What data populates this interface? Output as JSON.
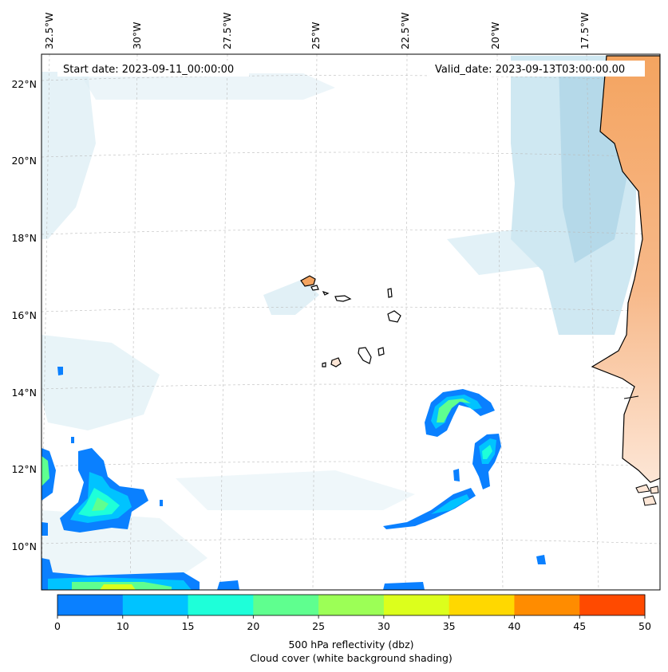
{
  "header": {
    "start_date": "Start date: 2023-09-11_00:00:00",
    "valid_date": "Valid_date: 2023-09-13T03:00:00.00"
  },
  "map": {
    "lon_labels": [
      "32.5°W",
      "30°W",
      "27.5°W",
      "25°W",
      "22.5°W",
      "20°W",
      "17.5°W"
    ],
    "lat_labels": [
      "22°N",
      "20°N",
      "18°N",
      "16°N",
      "14°N",
      "12°N",
      "10°N"
    ],
    "grid": true,
    "colors": {
      "land": "#f4a460",
      "cloud": "#bfe0ee",
      "coast": "#000000"
    }
  },
  "colorbar": {
    "ticks": [
      "0",
      "10",
      "15",
      "20",
      "25",
      "30",
      "35",
      "40",
      "45",
      "50"
    ],
    "colors": [
      "#0a80ff",
      "#00c3ff",
      "#1effd9",
      "#5fff8f",
      "#9cff56",
      "#dcff1c",
      "#ffd800",
      "#ff8c00",
      "#ff4a00"
    ],
    "label_line1": "500 hPa reflectivity (dbz)",
    "label_line2": "Cloud cover (white background shading)"
  }
}
